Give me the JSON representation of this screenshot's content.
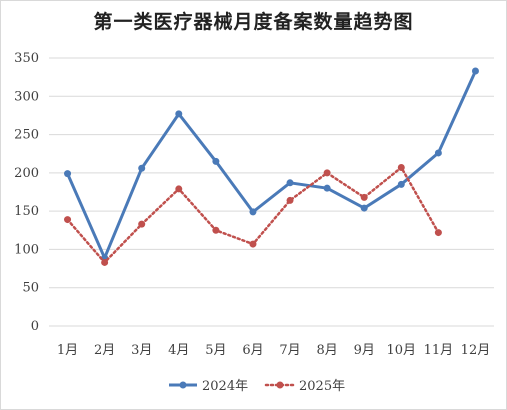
{
  "chart_data": {
    "type": "line",
    "title": "第一类医疗器械月度备案数量趋势图",
    "categories": [
      "1月",
      "2月",
      "3月",
      "4月",
      "5月",
      "6月",
      "7月",
      "8月",
      "9月",
      "10月",
      "11月",
      "12月"
    ],
    "series": [
      {
        "name": "2024年",
        "color": "#4a7ab8",
        "style": "solid-circle",
        "values": [
          199,
          89,
          206,
          277,
          215,
          149,
          187,
          180,
          154,
          185,
          226,
          333
        ]
      },
      {
        "name": "2025年",
        "color": "#c0504d",
        "style": "dotted-circle",
        "values": [
          139,
          83,
          133,
          179,
          125,
          107,
          164,
          200,
          168,
          207,
          122,
          null
        ]
      }
    ],
    "ylim": [
      0,
      350
    ],
    "yticks": [
      "0",
      "50",
      "100",
      "150",
      "200",
      "250",
      "300",
      "350"
    ],
    "grid": true,
    "legend": "bottom"
  }
}
